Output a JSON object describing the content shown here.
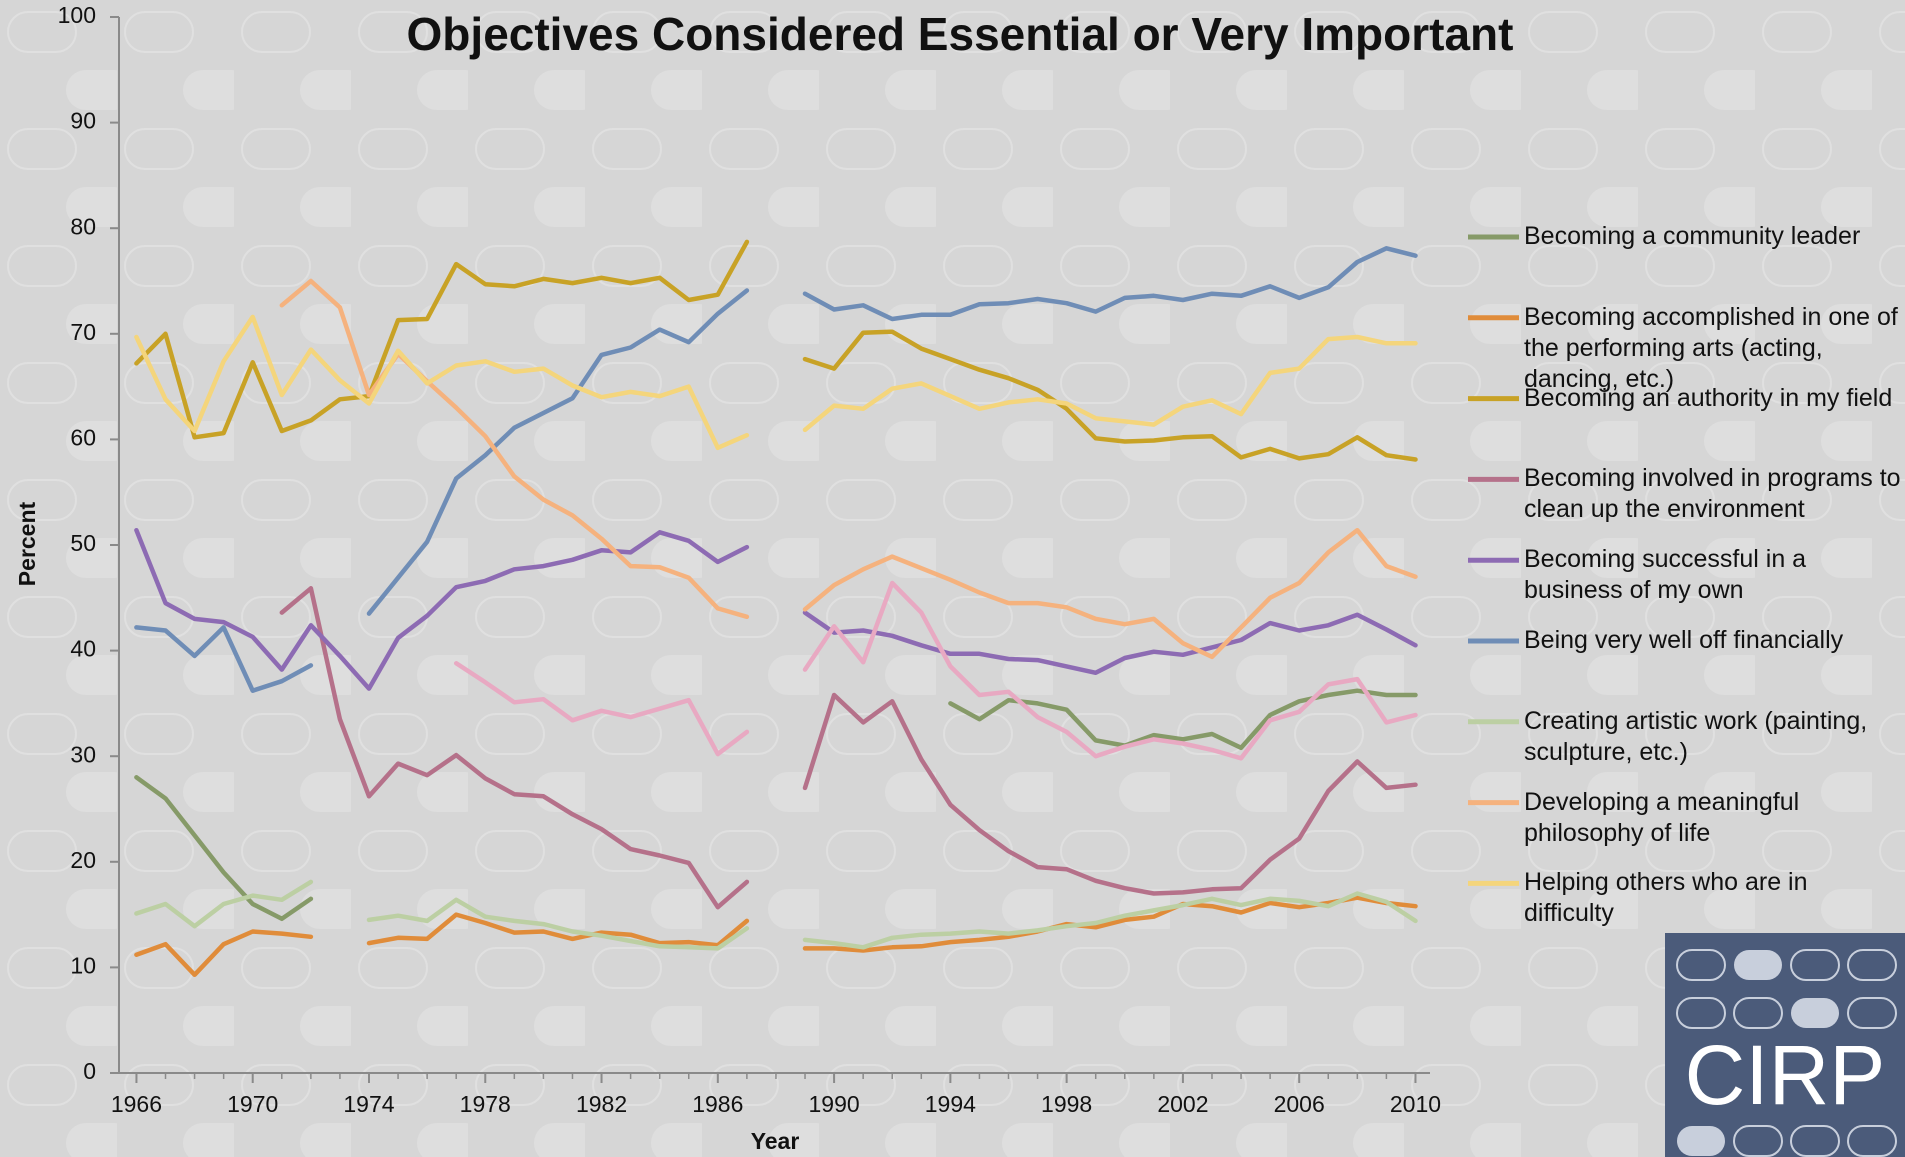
{
  "chart_data": {
    "type": "line",
    "title": "Objectives Considered Essential or Very Important",
    "x_label": "Year",
    "y_label": "Percent",
    "logo": "CIRP",
    "x": [
      1966,
      1967,
      1968,
      1969,
      1970,
      1971,
      1972,
      1973,
      1974,
      1975,
      1976,
      1977,
      1978,
      1979,
      1980,
      1981,
      1982,
      1983,
      1984,
      1985,
      1986,
      1987,
      1988,
      1989,
      1990,
      1991,
      1992,
      1993,
      1994,
      1995,
      1996,
      1997,
      1998,
      1999,
      2000,
      2001,
      2002,
      2003,
      2004,
      2005,
      2006,
      2007,
      2008,
      2009,
      2010
    ],
    "xlim": [
      1965.4,
      2010.5
    ],
    "xticks": [
      1966,
      1970,
      1974,
      1978,
      1982,
      1986,
      1990,
      1994,
      1998,
      2002,
      2006,
      2010
    ],
    "ylim": [
      0,
      100
    ],
    "yticks": [
      0,
      10,
      20,
      30,
      40,
      50,
      60,
      70,
      80,
      90,
      100
    ],
    "series": [
      {
        "name": "Becoming a community leader",
        "color": "#869a68",
        "values": [
          28,
          26,
          22.5,
          19,
          16,
          14.6,
          16.5,
          null,
          null,
          null,
          null,
          null,
          null,
          null,
          null,
          null,
          null,
          null,
          null,
          null,
          null,
          null,
          null,
          null,
          null,
          null,
          null,
          null,
          35,
          33.5,
          35.3,
          35,
          34.4,
          31.5,
          31,
          32,
          31.6,
          32.1,
          30.8,
          33.9,
          35.2,
          35.8,
          36.2,
          35.8,
          35.8
        ]
      },
      {
        "name": "Becoming accomplished in one of the performing arts (acting, dancing, etc.)",
        "color": "#e08c3a",
        "values": [
          11.2,
          12.2,
          9.3,
          12.2,
          13.4,
          13.2,
          12.9,
          null,
          12.3,
          12.8,
          12.7,
          15,
          14.2,
          13.3,
          13.4,
          12.7,
          13.3,
          13.1,
          12.3,
          12.4,
          12.1,
          14.4,
          null,
          11.8,
          11.8,
          11.6,
          11.9,
          12,
          12.4,
          12.6,
          12.9,
          13.4,
          14.1,
          13.8,
          14.5,
          14.8,
          16,
          15.8,
          15.2,
          16.1,
          15.7,
          16.1,
          16.6,
          16.1,
          15.8
        ]
      },
      {
        "name": "Becoming an authority in my field",
        "color": "#c8a226",
        "values": [
          67.2,
          70,
          60.2,
          60.6,
          67.3,
          60.8,
          61.8,
          63.8,
          64.1,
          71.3,
          71.4,
          76.6,
          74.7,
          74.5,
          75.2,
          74.8,
          75.3,
          74.8,
          75.3,
          73.2,
          73.7,
          78.7,
          null,
          67.6,
          66.7,
          70.1,
          70.2,
          68.6,
          67.6,
          66.6,
          65.8,
          64.7,
          62.9,
          60.1,
          59.8,
          59.9,
          60.2,
          60.3,
          58.3,
          59.1,
          58.2,
          58.6,
          60.2,
          58.5,
          58.1
        ]
      },
      {
        "name": "Becoming involved in programs to clean up the environment",
        "color": "#b5718a",
        "values": [
          null,
          null,
          null,
          null,
          null,
          43.6,
          45.9,
          33.5,
          26.2,
          29.3,
          28.2,
          30.1,
          27.9,
          26.4,
          26.2,
          24.5,
          23.1,
          21.2,
          20.6,
          19.9,
          15.7,
          18.1,
          null,
          27,
          35.8,
          33.2,
          35.2,
          29.7,
          25.4,
          23,
          21,
          19.5,
          19.3,
          18.2,
          17.5,
          17,
          17.1,
          17.4,
          17.5,
          20.2,
          22.2,
          26.7,
          29.5,
          27,
          27.3
        ]
      },
      {
        "name": "Becoming successful in a business of my own",
        "color": "#8d6bb3",
        "values": [
          51.4,
          44.5,
          43,
          42.7,
          41.3,
          38.2,
          42.4,
          39.5,
          36.4,
          41.2,
          43.3,
          46,
          46.6,
          47.7,
          48,
          48.6,
          49.5,
          49.3,
          51.2,
          50.4,
          48.4,
          49.8,
          null,
          43.6,
          41.7,
          41.9,
          41.4,
          40.5,
          39.7,
          39.7,
          39.2,
          39.1,
          38.5,
          37.9,
          39.3,
          39.9,
          39.6,
          40.3,
          41,
          42.6,
          41.9,
          42.4,
          43.4,
          42,
          40.5
        ]
      },
      {
        "name": "Being very well off financially",
        "color": "#6f8db6",
        "values": [
          42.2,
          41.9,
          39.5,
          42.2,
          36.2,
          37.1,
          38.6,
          null,
          43.5,
          46.9,
          50.3,
          56.3,
          58.5,
          61.1,
          62.5,
          63.9,
          68,
          68.7,
          70.4,
          69.2,
          71.9,
          74.1,
          null,
          73.8,
          72.3,
          72.7,
          71.4,
          71.8,
          71.8,
          72.8,
          72.9,
          73.3,
          72.9,
          72.1,
          73.4,
          73.6,
          73.2,
          73.8,
          73.6,
          74.5,
          73.4,
          74.4,
          76.8,
          78.1,
          77.4
        ]
      },
      {
        "name": "Creating artistic work (painting, sculpture, etc.)",
        "color": "#bccfa3",
        "values": [
          15.1,
          16,
          13.9,
          16,
          16.8,
          16.4,
          18.1,
          null,
          14.5,
          14.9,
          14.4,
          16.4,
          14.8,
          14.4,
          14.1,
          13.4,
          13,
          12.5,
          12,
          11.9,
          11.8,
          13.7,
          null,
          12.6,
          12.3,
          11.9,
          12.8,
          13.1,
          13.2,
          13.4,
          13.2,
          13.5,
          13.9,
          14.2,
          14.9,
          15.4,
          15.9,
          16.5,
          15.9,
          16.5,
          16.3,
          15.8,
          17,
          16.2,
          14.4
        ]
      },
      {
        "name": "Developing a meaningful philosophy of life",
        "color": "#f5b27e",
        "values": [
          null,
          null,
          null,
          null,
          null,
          72.7,
          75,
          72.5,
          64.2,
          68.1,
          65.5,
          63,
          60.3,
          56.5,
          54.3,
          52.8,
          50.6,
          48,
          47.9,
          46.9,
          44,
          43.2,
          null,
          43.9,
          46.2,
          47.7,
          48.9,
          47.8,
          46.7,
          45.5,
          44.5,
          44.5,
          44.1,
          43,
          42.5,
          43,
          40.7,
          39.4,
          42.2,
          45,
          46.4,
          49.3,
          51.4,
          48,
          47
        ]
      },
      {
        "name": "Helping others who are in difficulty",
        "color": "#f4d57c",
        "values": [
          69.7,
          63.8,
          60.8,
          67.4,
          71.6,
          64.2,
          68.5,
          65.6,
          63.4,
          68.4,
          65.3,
          67,
          67.4,
          66.4,
          66.7,
          65.1,
          64,
          64.5,
          64.1,
          65,
          59.2,
          60.4,
          null,
          60.9,
          63.2,
          62.9,
          64.8,
          65.3,
          64.1,
          62.9,
          63.5,
          63.8,
          63.4,
          62,
          61.7,
          61.4,
          63.1,
          63.7,
          62.4,
          66.3,
          66.7,
          69.5,
          69.7,
          69.1,
          69.1
        ]
      },
      {
        "color": "#e8a9c2",
        "values": [
          null,
          null,
          null,
          null,
          null,
          null,
          null,
          null,
          null,
          null,
          null,
          38.8,
          37,
          35.1,
          35.4,
          33.4,
          34.3,
          33.7,
          34.5,
          35.3,
          30.2,
          32.3,
          null,
          38.2,
          42.3,
          38.9,
          46.4,
          43.6,
          38.5,
          35.8,
          36.1,
          33.7,
          32.3,
          30,
          30.9,
          31.6,
          31.2,
          30.6,
          29.8,
          33.4,
          34.2,
          36.8,
          37.3,
          33.2,
          33.9
        ]
      }
    ]
  }
}
